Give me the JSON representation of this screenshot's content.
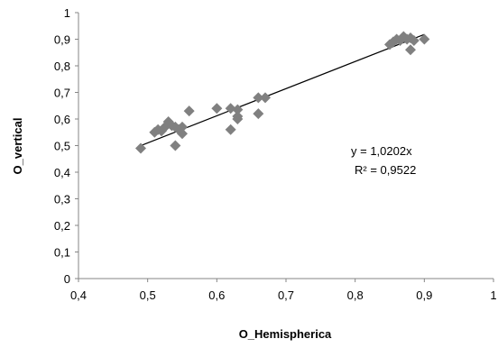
{
  "chart_data": {
    "type": "scatter",
    "xlabel": "O_Hemispherica",
    "ylabel": "O_vertical",
    "xlim": [
      0.4,
      1.0
    ],
    "ylim": [
      0,
      1.0
    ],
    "x_ticks": [
      "0,4",
      "0,5",
      "0,6",
      "0,7",
      "0,8",
      "0,9",
      "1"
    ],
    "y_ticks": [
      "0",
      "0,1",
      "0,2",
      "0,3",
      "0,4",
      "0,5",
      "0,6",
      "0,7",
      "0,8",
      "0,9",
      "1"
    ],
    "grid": false,
    "legend": "none",
    "marker": "diamond",
    "marker_color": "#808080",
    "trendline_color": "#000000",
    "trendline": {
      "slope": 1.0202,
      "x_range": [
        0.49,
        0.9
      ]
    },
    "annotations": {
      "equation": "y = 1,0202x",
      "r_squared": "R² = 0,9522"
    },
    "points": [
      {
        "x": 0.49,
        "y": 0.49
      },
      {
        "x": 0.51,
        "y": 0.55
      },
      {
        "x": 0.515,
        "y": 0.56
      },
      {
        "x": 0.52,
        "y": 0.555
      },
      {
        "x": 0.525,
        "y": 0.57
      },
      {
        "x": 0.53,
        "y": 0.59
      },
      {
        "x": 0.535,
        "y": 0.575
      },
      {
        "x": 0.54,
        "y": 0.5
      },
      {
        "x": 0.54,
        "y": 0.57
      },
      {
        "x": 0.545,
        "y": 0.56
      },
      {
        "x": 0.55,
        "y": 0.57
      },
      {
        "x": 0.55,
        "y": 0.545
      },
      {
        "x": 0.56,
        "y": 0.63
      },
      {
        "x": 0.6,
        "y": 0.64
      },
      {
        "x": 0.62,
        "y": 0.56
      },
      {
        "x": 0.62,
        "y": 0.64
      },
      {
        "x": 0.63,
        "y": 0.6
      },
      {
        "x": 0.63,
        "y": 0.61
      },
      {
        "x": 0.63,
        "y": 0.635
      },
      {
        "x": 0.66,
        "y": 0.62
      },
      {
        "x": 0.66,
        "y": 0.68
      },
      {
        "x": 0.67,
        "y": 0.68
      },
      {
        "x": 0.85,
        "y": 0.88
      },
      {
        "x": 0.855,
        "y": 0.89
      },
      {
        "x": 0.86,
        "y": 0.9
      },
      {
        "x": 0.865,
        "y": 0.895
      },
      {
        "x": 0.87,
        "y": 0.91
      },
      {
        "x": 0.875,
        "y": 0.9
      },
      {
        "x": 0.88,
        "y": 0.905
      },
      {
        "x": 0.88,
        "y": 0.86
      },
      {
        "x": 0.885,
        "y": 0.895
      },
      {
        "x": 0.9,
        "y": 0.9
      }
    ]
  }
}
